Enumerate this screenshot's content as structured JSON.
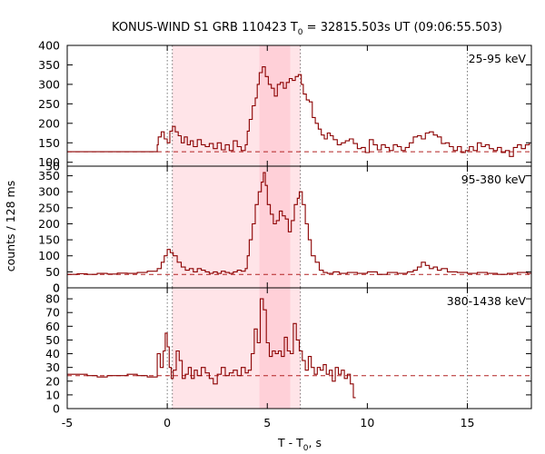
{
  "chart_data": {
    "type": "line",
    "style": "step",
    "title_main": "KONUS-WIND S1 GRB 110423 T",
    "title_sub": "0",
    "title_rest": " = 32815.503s UT (09:06:55.503)",
    "xlabel_main": "T - T",
    "xlabel_sub": "0",
    "xlabel_rest": ", s",
    "ylabel": "counts / 128 ms",
    "xlim": [
      -5,
      18.2
    ],
    "xticks": [
      -5,
      0,
      5,
      10,
      15
    ],
    "bin_width": 0.128,
    "shaded_regions": [
      {
        "x0": 0.256,
        "x1": 6.656,
        "alpha": "light"
      },
      {
        "x0": 4.608,
        "x1": 6.144,
        "alpha": "dark"
      }
    ],
    "dotted_vlines": [
      0,
      0.256,
      6.656,
      15
    ],
    "colors": {
      "line": "#8b0000",
      "background_dash": "#b22222",
      "shade": "#ffe4e8",
      "shade_dark": "#ffd0d8"
    },
    "panels": [
      {
        "label": "25-95 keV",
        "ylim": [
          90,
          400
        ],
        "yticks": [
          100,
          150,
          200,
          250,
          300,
          350,
          400
        ],
        "bottom_tick": 50,
        "background": 127,
        "series": [
          [
            -5,
            127
          ],
          [
            -2.4,
            127
          ],
          [
            -0.5,
            145
          ],
          [
            -0.45,
            165
          ],
          [
            -0.3,
            178
          ],
          [
            -0.15,
            160
          ],
          [
            0,
            150
          ],
          [
            0.13,
            180
          ],
          [
            0.26,
            192
          ],
          [
            0.4,
            178
          ],
          [
            0.55,
            168
          ],
          [
            0.7,
            150
          ],
          [
            0.85,
            165
          ],
          [
            1,
            145
          ],
          [
            1.15,
            155
          ],
          [
            1.3,
            140
          ],
          [
            1.5,
            158
          ],
          [
            1.7,
            145
          ],
          [
            1.9,
            140
          ],
          [
            2.1,
            148
          ],
          [
            2.3,
            135
          ],
          [
            2.5,
            150
          ],
          [
            2.7,
            132
          ],
          [
            2.9,
            145
          ],
          [
            3.1,
            130
          ],
          [
            3.3,
            155
          ],
          [
            3.5,
            140
          ],
          [
            3.7,
            130
          ],
          [
            3.9,
            145
          ],
          [
            4.0,
            180
          ],
          [
            4.1,
            210
          ],
          [
            4.25,
            245
          ],
          [
            4.4,
            265
          ],
          [
            4.5,
            300
          ],
          [
            4.6,
            330
          ],
          [
            4.75,
            345
          ],
          [
            4.9,
            320
          ],
          [
            5.05,
            300
          ],
          [
            5.2,
            290
          ],
          [
            5.35,
            270
          ],
          [
            5.5,
            300
          ],
          [
            5.65,
            305
          ],
          [
            5.8,
            290
          ],
          [
            5.95,
            305
          ],
          [
            6.1,
            315
          ],
          [
            6.25,
            310
          ],
          [
            6.4,
            320
          ],
          [
            6.55,
            325
          ],
          [
            6.7,
            300
          ],
          [
            6.8,
            275
          ],
          [
            6.95,
            260
          ],
          [
            7.1,
            255
          ],
          [
            7.25,
            215
          ],
          [
            7.4,
            200
          ],
          [
            7.55,
            185
          ],
          [
            7.7,
            170
          ],
          [
            7.85,
            160
          ],
          [
            8.0,
            175
          ],
          [
            8.15,
            168
          ],
          [
            8.3,
            158
          ],
          [
            8.5,
            145
          ],
          [
            8.7,
            150
          ],
          [
            8.9,
            155
          ],
          [
            9.1,
            160
          ],
          [
            9.3,
            148
          ],
          [
            9.5,
            135
          ],
          [
            9.7,
            138
          ],
          [
            9.9,
            125
          ],
          [
            10.1,
            158
          ],
          [
            10.3,
            145
          ],
          [
            10.5,
            132
          ],
          [
            10.7,
            145
          ],
          [
            10.9,
            138
          ],
          [
            11.1,
            130
          ],
          [
            11.3,
            145
          ],
          [
            11.5,
            140
          ],
          [
            11.7,
            130
          ],
          [
            11.9,
            138
          ],
          [
            12.1,
            150
          ],
          [
            12.3,
            165
          ],
          [
            12.5,
            168
          ],
          [
            12.7,
            160
          ],
          [
            12.9,
            175
          ],
          [
            13.1,
            178
          ],
          [
            13.3,
            170
          ],
          [
            13.5,
            165
          ],
          [
            13.7,
            148
          ],
          [
            13.9,
            150
          ],
          [
            14.1,
            140
          ],
          [
            14.3,
            130
          ],
          [
            14.5,
            140
          ],
          [
            14.7,
            125
          ],
          [
            14.9,
            130
          ],
          [
            15.1,
            140
          ],
          [
            15.3,
            130
          ],
          [
            15.5,
            150
          ],
          [
            15.7,
            140
          ],
          [
            15.9,
            145
          ],
          [
            16.1,
            135
          ],
          [
            16.3,
            130
          ],
          [
            16.5,
            138
          ],
          [
            16.7,
            125
          ],
          [
            16.9,
            130
          ],
          [
            17.1,
            115
          ],
          [
            17.3,
            138
          ],
          [
            17.5,
            145
          ],
          [
            17.7,
            135
          ],
          [
            17.9,
            145
          ],
          [
            18.1,
            150
          ]
        ]
      },
      {
        "label": "95-380 keV",
        "ylim": [
          0,
          380
        ],
        "yticks": [
          0,
          50,
          100,
          150,
          200,
          250,
          300,
          350
        ],
        "bottom_tick": 0,
        "background": 42,
        "series": [
          [
            -5,
            42
          ],
          [
            -4.5,
            44
          ],
          [
            -4,
            42
          ],
          [
            -3.5,
            45
          ],
          [
            -3,
            43
          ],
          [
            -2.5,
            46
          ],
          [
            -2,
            45
          ],
          [
            -1.5,
            48
          ],
          [
            -1,
            52
          ],
          [
            -0.5,
            60
          ],
          [
            -0.3,
            80
          ],
          [
            -0.15,
            100
          ],
          [
            0,
            120
          ],
          [
            0.15,
            110
          ],
          [
            0.3,
            100
          ],
          [
            0.5,
            80
          ],
          [
            0.7,
            65
          ],
          [
            0.9,
            55
          ],
          [
            1.1,
            60
          ],
          [
            1.3,
            50
          ],
          [
            1.5,
            60
          ],
          [
            1.7,
            55
          ],
          [
            1.9,
            50
          ],
          [
            2.1,
            45
          ],
          [
            2.3,
            50
          ],
          [
            2.5,
            45
          ],
          [
            2.7,
            52
          ],
          [
            2.9,
            48
          ],
          [
            3.1,
            45
          ],
          [
            3.3,
            50
          ],
          [
            3.5,
            55
          ],
          [
            3.7,
            52
          ],
          [
            3.9,
            60
          ],
          [
            4.0,
            100
          ],
          [
            4.1,
            150
          ],
          [
            4.25,
            200
          ],
          [
            4.4,
            260
          ],
          [
            4.55,
            300
          ],
          [
            4.7,
            330
          ],
          [
            4.8,
            360
          ],
          [
            4.9,
            320
          ],
          [
            5.0,
            260
          ],
          [
            5.15,
            230
          ],
          [
            5.3,
            200
          ],
          [
            5.45,
            210
          ],
          [
            5.6,
            240
          ],
          [
            5.75,
            225
          ],
          [
            5.9,
            215
          ],
          [
            6.05,
            175
          ],
          [
            6.2,
            210
          ],
          [
            6.35,
            260
          ],
          [
            6.5,
            280
          ],
          [
            6.6,
            300
          ],
          [
            6.75,
            260
          ],
          [
            6.9,
            200
          ],
          [
            7.05,
            150
          ],
          [
            7.2,
            100
          ],
          [
            7.4,
            80
          ],
          [
            7.6,
            55
          ],
          [
            7.8,
            48
          ],
          [
            8.0,
            45
          ],
          [
            8.3,
            50
          ],
          [
            8.6,
            45
          ],
          [
            9,
            48
          ],
          [
            9.5,
            45
          ],
          [
            10,
            50
          ],
          [
            10.5,
            42
          ],
          [
            11,
            48
          ],
          [
            11.5,
            45
          ],
          [
            12,
            50
          ],
          [
            12.3,
            55
          ],
          [
            12.5,
            65
          ],
          [
            12.7,
            80
          ],
          [
            12.9,
            70
          ],
          [
            13.1,
            60
          ],
          [
            13.3,
            65
          ],
          [
            13.5,
            55
          ],
          [
            13.7,
            60
          ],
          [
            14,
            50
          ],
          [
            14.5,
            48
          ],
          [
            15,
            45
          ],
          [
            15.5,
            48
          ],
          [
            16,
            45
          ],
          [
            16.5,
            42
          ],
          [
            17,
            45
          ],
          [
            17.5,
            48
          ],
          [
            18,
            45
          ],
          [
            18.2,
            45
          ]
        ]
      },
      {
        "label": "380-1438 keV",
        "ylim": [
          0,
          88
        ],
        "yticks": [
          0,
          10,
          20,
          30,
          40,
          50,
          60,
          70,
          80
        ],
        "bottom_tick": 0,
        "background": 24,
        "series": [
          [
            -5,
            25
          ],
          [
            -4.5,
            25
          ],
          [
            -4,
            24
          ],
          [
            -3.5,
            23
          ],
          [
            -3,
            24
          ],
          [
            -2.5,
            24
          ],
          [
            -2,
            25
          ],
          [
            -1.5,
            24
          ],
          [
            -1,
            23
          ],
          [
            -0.5,
            40
          ],
          [
            -0.35,
            30
          ],
          [
            -0.2,
            42
          ],
          [
            -0.1,
            55
          ],
          [
            0,
            45
          ],
          [
            0.1,
            30
          ],
          [
            0.2,
            22
          ],
          [
            0.3,
            28
          ],
          [
            0.45,
            42
          ],
          [
            0.6,
            35
          ],
          [
            0.75,
            22
          ],
          [
            0.9,
            25
          ],
          [
            1.05,
            30
          ],
          [
            1.2,
            22
          ],
          [
            1.35,
            28
          ],
          [
            1.5,
            24
          ],
          [
            1.7,
            30
          ],
          [
            1.9,
            26
          ],
          [
            2.1,
            22
          ],
          [
            2.3,
            18
          ],
          [
            2.5,
            25
          ],
          [
            2.7,
            30
          ],
          [
            2.9,
            24
          ],
          [
            3.1,
            26
          ],
          [
            3.3,
            28
          ],
          [
            3.5,
            24
          ],
          [
            3.7,
            30
          ],
          [
            3.9,
            26
          ],
          [
            4.05,
            28
          ],
          [
            4.2,
            40
          ],
          [
            4.35,
            58
          ],
          [
            4.5,
            48
          ],
          [
            4.65,
            80
          ],
          [
            4.8,
            72
          ],
          [
            4.95,
            48
          ],
          [
            5.1,
            38
          ],
          [
            5.25,
            42
          ],
          [
            5.4,
            40
          ],
          [
            5.55,
            42
          ],
          [
            5.7,
            38
          ],
          [
            5.85,
            52
          ],
          [
            6.0,
            42
          ],
          [
            6.15,
            40
          ],
          [
            6.3,
            62
          ],
          [
            6.45,
            50
          ],
          [
            6.6,
            42
          ],
          [
            6.75,
            35
          ],
          [
            6.9,
            28
          ],
          [
            7.05,
            38
          ],
          [
            7.2,
            30
          ],
          [
            7.35,
            25
          ],
          [
            7.5,
            30
          ],
          [
            7.65,
            28
          ],
          [
            7.8,
            32
          ],
          [
            7.95,
            25
          ],
          [
            8.1,
            28
          ],
          [
            8.25,
            20
          ],
          [
            8.4,
            30
          ],
          [
            8.55,
            25
          ],
          [
            8.7,
            28
          ],
          [
            8.85,
            22
          ],
          [
            9.0,
            25
          ],
          [
            9.15,
            18
          ],
          [
            9.3,
            8
          ],
          [
            9.42,
            8
          ]
        ]
      }
    ]
  }
}
